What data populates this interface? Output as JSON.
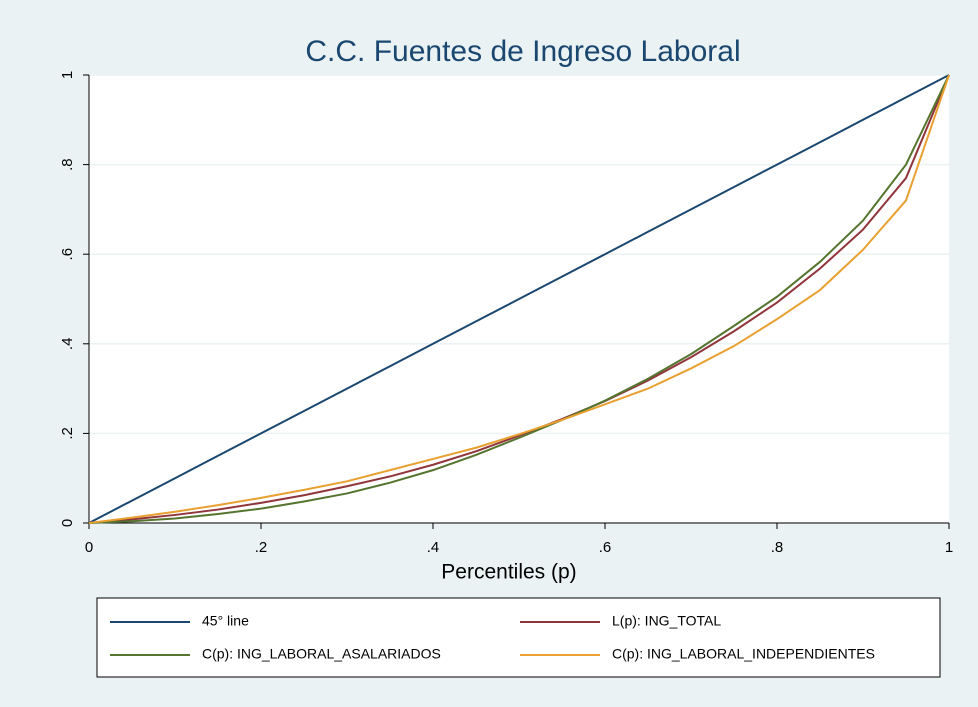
{
  "chart_data": {
    "type": "line",
    "title": "C.C. Fuentes de Ingreso Laboral",
    "x_label": "Percentiles (p)",
    "x": [
      0,
      0.05,
      0.1,
      0.15,
      0.2,
      0.25,
      0.3,
      0.35,
      0.4,
      0.45,
      0.5,
      0.55,
      0.6,
      0.65,
      0.7,
      0.75,
      0.8,
      0.85,
      0.9,
      0.95,
      1
    ],
    "series": [
      {
        "name": "45° line",
        "color": "#1a476f",
        "values": [
          0,
          0.05,
          0.1,
          0.15,
          0.2,
          0.25,
          0.3,
          0.35,
          0.4,
          0.45,
          0.5,
          0.55,
          0.6,
          0.65,
          0.7,
          0.75,
          0.8,
          0.85,
          0.9,
          0.95,
          1
        ]
      },
      {
        "name": "L(p): ING_TOTAL",
        "color": "#90353b",
        "values": [
          0,
          0.008,
          0.018,
          0.03,
          0.045,
          0.062,
          0.082,
          0.104,
          0.13,
          0.16,
          0.195,
          0.232,
          0.272,
          0.318,
          0.37,
          0.428,
          0.492,
          0.568,
          0.655,
          0.77,
          1
        ]
      },
      {
        "name": "C(p): ING_LABORAL_ASALARIADOS",
        "color": "#55752f",
        "values": [
          0,
          0.004,
          0.01,
          0.02,
          0.032,
          0.048,
          0.066,
          0.09,
          0.118,
          0.152,
          0.19,
          0.23,
          0.273,
          0.322,
          0.377,
          0.44,
          0.505,
          0.583,
          0.675,
          0.8,
          1
        ]
      },
      {
        "name": "C(p): ING_LABORAL_INDEPENDIENTES",
        "color": "#e8a030",
        "values": [
          0,
          0.012,
          0.025,
          0.04,
          0.056,
          0.074,
          0.093,
          0.118,
          0.143,
          0.168,
          0.198,
          0.23,
          0.265,
          0.3,
          0.345,
          0.395,
          0.455,
          0.52,
          0.61,
          0.72,
          1
        ]
      }
    ],
    "xlim": [
      0,
      1
    ],
    "ylim": [
      0,
      1
    ],
    "xticks": [
      0,
      {
        "value": 0.2,
        "label": ".2"
      },
      {
        "value": 0.4,
        "label": ".4"
      },
      {
        "value": 0.6,
        "label": ".6"
      },
      {
        "value": 0.8,
        "label": ".8"
      },
      1
    ],
    "yticks": [
      0,
      {
        "value": 0.2,
        "label": ".2"
      },
      {
        "value": 0.4,
        "label": ".4"
      },
      {
        "value": 0.6,
        "label": ".6"
      },
      {
        "value": 0.8,
        "label": ".8"
      },
      1
    ],
    "grid": true
  }
}
